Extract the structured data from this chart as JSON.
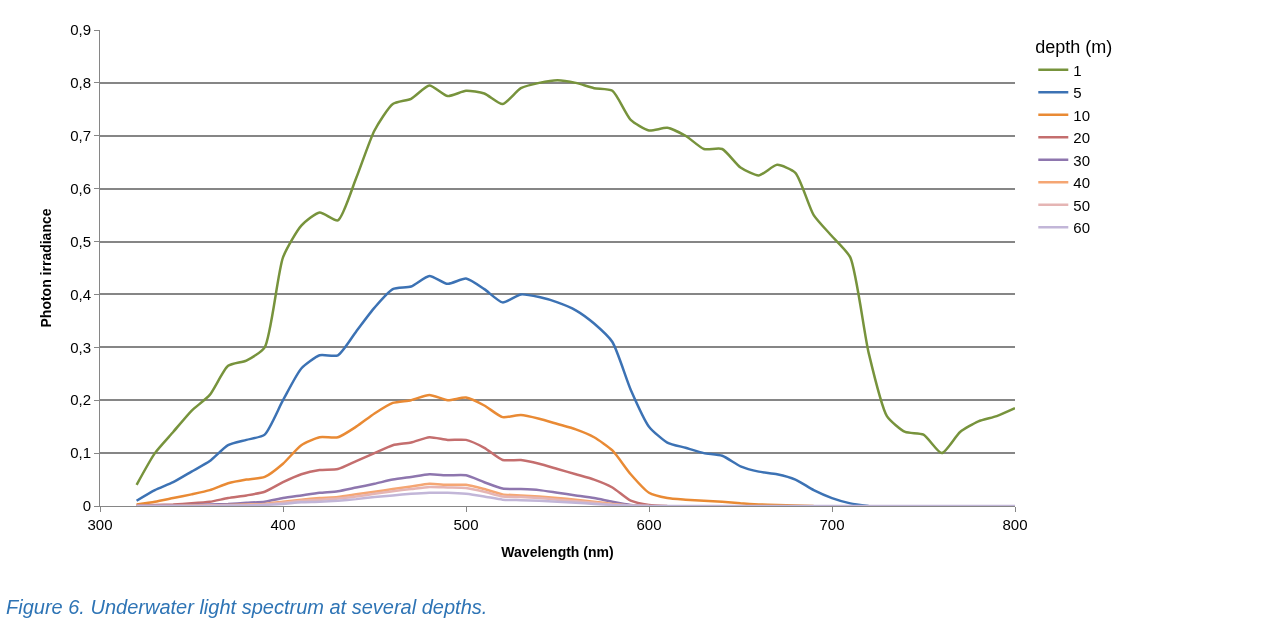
{
  "chart_data": {
    "type": "line",
    "xlabel": "Wavelength (nm)",
    "ylabel": "Photon irradiance",
    "legend_title": "depth (m)",
    "annotations": [
      "Figure 6. Underwater light spectrum at several depths."
    ],
    "x": [
      320,
      330,
      340,
      350,
      360,
      370,
      380,
      390,
      400,
      410,
      420,
      430,
      440,
      450,
      460,
      470,
      480,
      490,
      500,
      510,
      520,
      530,
      540,
      550,
      560,
      570,
      580,
      590,
      600,
      610,
      620,
      630,
      640,
      650,
      660,
      670,
      680,
      690,
      700,
      710,
      720,
      730,
      740,
      750,
      760,
      770,
      780,
      790,
      800
    ],
    "xlim": [
      300,
      800
    ],
    "xticks": [
      300,
      400,
      500,
      600,
      700,
      800
    ],
    "ylim": [
      0,
      0.9
    ],
    "yticks": [
      0,
      {
        "value": 0.1,
        "label": "0,1"
      },
      {
        "value": 0.2,
        "label": "0,2"
      },
      {
        "value": 0.3,
        "label": "0,3"
      },
      {
        "value": 0.4,
        "label": "0,4"
      },
      {
        "value": 0.5,
        "label": "0,5"
      },
      {
        "value": 0.6,
        "label": "0,6"
      },
      {
        "value": 0.7,
        "label": "0,7"
      },
      {
        "value": 0.8,
        "label": "0,8"
      },
      {
        "value": 0.9,
        "label": "0,9"
      }
    ],
    "grid": "y",
    "legend": "right",
    "marker": "none",
    "line_style": "solid",
    "series": [
      {
        "name": "1",
        "color": "#77933c",
        "values": [
          0.04,
          0.1,
          0.14,
          0.18,
          0.21,
          0.265,
          0.275,
          0.3,
          0.47,
          0.53,
          0.555,
          0.54,
          0.62,
          0.71,
          0.76,
          0.77,
          0.795,
          0.775,
          0.785,
          0.78,
          0.76,
          0.79,
          0.8,
          0.805,
          0.8,
          0.79,
          0.785,
          0.73,
          0.71,
          0.715,
          0.7,
          0.675,
          0.675,
          0.64,
          0.625,
          0.645,
          0.63,
          0.55,
          0.51,
          0.47,
          0.29,
          0.17,
          0.14,
          0.135,
          0.1,
          0.14,
          0.16,
          0.17,
          0.185
        ]
      },
      {
        "name": "5",
        "color": "#3c72b4",
        "values": [
          0.01,
          0.03,
          0.045,
          0.065,
          0.085,
          0.115,
          0.125,
          0.135,
          0.2,
          0.26,
          0.285,
          0.285,
          0.33,
          0.375,
          0.41,
          0.415,
          0.435,
          0.42,
          0.43,
          0.41,
          0.385,
          0.4,
          0.395,
          0.385,
          0.37,
          0.345,
          0.31,
          0.22,
          0.15,
          0.12,
          0.11,
          0.1,
          0.095,
          0.075,
          0.065,
          0.06,
          0.05,
          0.03,
          0.015,
          0.005,
          0,
          null,
          null,
          null,
          null,
          null,
          null,
          null,
          null
        ]
      },
      {
        "name": "10",
        "color": "#e98a34",
        "values": [
          0.003,
          0.008,
          0.015,
          0.022,
          0.03,
          0.043,
          0.05,
          0.055,
          0.08,
          0.115,
          0.13,
          0.13,
          0.15,
          0.175,
          0.195,
          0.2,
          0.21,
          0.2,
          0.205,
          0.19,
          0.168,
          0.172,
          0.165,
          0.155,
          0.145,
          0.13,
          0.105,
          0.06,
          0.025,
          0.015,
          0.012,
          0.01,
          0.008,
          0.005,
          0.003,
          0.002,
          0.001,
          0,
          null,
          null,
          null,
          null,
          null,
          null,
          null,
          null,
          null,
          null,
          null
        ]
      },
      {
        "name": "20",
        "color": "#c46e6e",
        "values": [
          0.001,
          0.002,
          0.003,
          0.005,
          0.008,
          0.015,
          0.02,
          0.027,
          0.045,
          0.06,
          0.068,
          0.07,
          0.085,
          0.1,
          0.115,
          0.12,
          0.13,
          0.125,
          0.125,
          0.11,
          0.087,
          0.087,
          0.08,
          0.07,
          0.06,
          0.05,
          0.035,
          0.01,
          0.002,
          0,
          null,
          null,
          null,
          null,
          null,
          null,
          null,
          null,
          null,
          null,
          null,
          null,
          null,
          null,
          null,
          null,
          null,
          null,
          null
        ]
      },
      {
        "name": "30",
        "color": "#8e76ae",
        "values": [
          0,
          0.001,
          0.001,
          0.002,
          0.003,
          0.004,
          0.006,
          0.008,
          0.015,
          0.02,
          0.025,
          0.028,
          0.035,
          0.042,
          0.05,
          0.055,
          0.06,
          0.058,
          0.058,
          0.045,
          0.033,
          0.032,
          0.03,
          0.025,
          0.02,
          0.015,
          0.008,
          0.002,
          0,
          null,
          null,
          null,
          null,
          null,
          null,
          null,
          null,
          null,
          null,
          null,
          null,
          null,
          null,
          null,
          null,
          null,
          null,
          null,
          null
        ]
      },
      {
        "name": "40",
        "color": "#f5a673",
        "values": [
          0,
          0,
          0,
          0.001,
          0.001,
          0.002,
          0.003,
          0.004,
          0.008,
          0.012,
          0.015,
          0.017,
          0.022,
          0.027,
          0.032,
          0.037,
          0.042,
          0.04,
          0.04,
          0.032,
          0.022,
          0.02,
          0.018,
          0.015,
          0.012,
          0.008,
          0.004,
          0.001,
          0,
          null,
          null,
          null,
          null,
          null,
          null,
          null,
          null,
          null,
          null,
          null,
          null,
          null,
          null,
          null,
          null,
          null,
          null,
          null,
          null
        ]
      },
      {
        "name": "50",
        "color": "#e5b5b4",
        "values": [
          0,
          0,
          0,
          0,
          0.001,
          0.001,
          0.002,
          0.003,
          0.006,
          0.01,
          0.012,
          0.014,
          0.018,
          0.023,
          0.028,
          0.032,
          0.036,
          0.035,
          0.034,
          0.027,
          0.018,
          0.017,
          0.015,
          0.012,
          0.009,
          0.006,
          0.003,
          0.001,
          0,
          null,
          null,
          null,
          null,
          null,
          null,
          null,
          null,
          null,
          null,
          null,
          null,
          null,
          null,
          null,
          null,
          null,
          null,
          null,
          null
        ]
      },
      {
        "name": "60",
        "color": "#c2b6d8",
        "values": [
          0,
          0,
          0,
          0,
          0,
          0.001,
          0.001,
          0.002,
          0.004,
          0.007,
          0.008,
          0.01,
          0.013,
          0.017,
          0.02,
          0.023,
          0.025,
          0.025,
          0.023,
          0.018,
          0.012,
          0.011,
          0.01,
          0.008,
          0.006,
          0.004,
          0.002,
          0.001,
          0,
          0,
          0,
          0,
          0,
          0,
          0,
          0,
          0,
          0,
          0,
          0,
          0,
          0,
          0,
          0,
          0,
          0,
          0,
          0,
          0
        ]
      }
    ]
  }
}
